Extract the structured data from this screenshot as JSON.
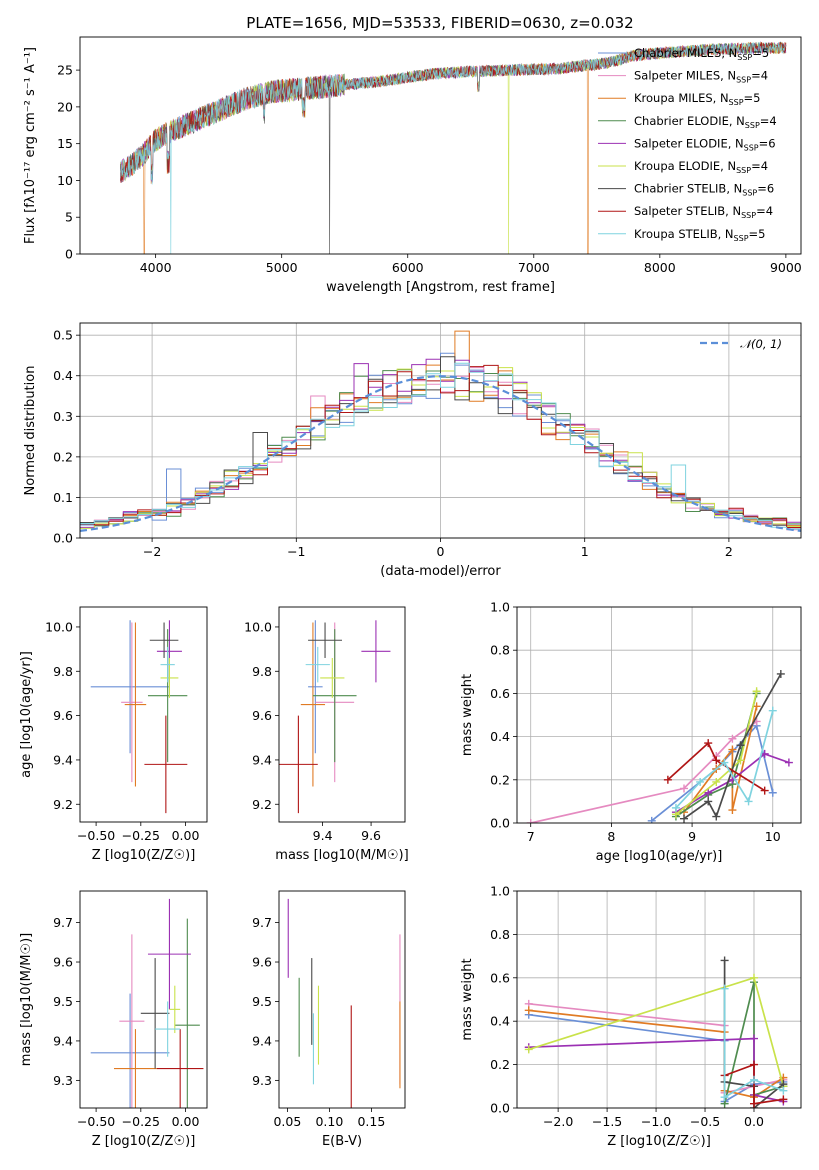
{
  "title": "PLATE=1656, MJD=53533, FIBERID=0630, z=0.032",
  "colors": {
    "Chabrier MILES": "#6a8fd6",
    "Salpeter MILES": "#e58ac0",
    "Kroupa MILES": "#e07b24",
    "Chabrier ELODIE": "#4f8c4f",
    "Salpeter ELODIE": "#9b30b3",
    "Kroupa ELODIE": "#c9e24a",
    "Chabrier STELIB": "#4a4a4a",
    "Salpeter STELIB": "#b01515",
    "Kroupa STELIB": "#7fd3df"
  },
  "chart_data": [
    {
      "type": "line",
      "name": "spectrum",
      "title": "PLATE=1656, MJD=53533, FIBERID=0630, z=0.032",
      "xlabel": "wavelength [Angstrom, rest frame]",
      "ylabel": "Flux [fλ10⁻¹⁷ erg cm⁻² s⁻¹ A⁻¹]",
      "xlim": [
        3400,
        9120
      ],
      "ylim": [
        0,
        29.5
      ],
      "xticks": [
        4000,
        5000,
        6000,
        7000,
        8000,
        9000
      ],
      "yticks": [
        0,
        5,
        10,
        15,
        20,
        25
      ],
      "legend": [
        "Chabrier MILES, N_SSP=5",
        "Salpeter MILES, N_SSP=4",
        "Kroupa MILES, N_SSP=5",
        "Chabrier ELODIE, N_SSP=4",
        "Salpeter ELODIE, N_SSP=6",
        "Kroupa ELODIE, N_SSP=4",
        "Chabrier STELIB, N_SSP=6",
        "Salpeter STELIB, N_SSP=4",
        "Kroupa STELIB, N_SSP=5"
      ],
      "legend_placement": "right",
      "continuum": [
        [
          3700,
          11
        ],
        [
          3800,
          12
        ],
        [
          3900,
          13.5
        ],
        [
          4000,
          15.5
        ],
        [
          4100,
          16.5
        ],
        [
          4300,
          18
        ],
        [
          4500,
          19.5
        ],
        [
          4700,
          21
        ],
        [
          4900,
          22
        ],
        [
          5200,
          22.5
        ],
        [
          5500,
          23
        ],
        [
          5800,
          23.5
        ],
        [
          6200,
          24.5
        ],
        [
          6500,
          24.8
        ],
        [
          6800,
          25
        ],
        [
          7200,
          25.2
        ],
        [
          7600,
          26
        ],
        [
          7800,
          27
        ],
        [
          8000,
          27.3
        ],
        [
          8400,
          27.8
        ],
        [
          8800,
          28
        ],
        [
          9000,
          28
        ]
      ],
      "dropouts": [
        {
          "x": 3910,
          "series": "Kroupa MILES"
        },
        {
          "x": 4120,
          "series": "Kroupa STELIB"
        },
        {
          "x": 5380,
          "series": "Chabrier STELIB"
        },
        {
          "x": 6800,
          "series": "Kroupa ELODIE"
        },
        {
          "x": 7430,
          "series": "Kroupa MILES"
        }
      ]
    },
    {
      "type": "histogram",
      "name": "residuals",
      "xlabel": "(data-model)/error",
      "ylabel": "Normed distribution",
      "xlim": [
        -2.5,
        2.5
      ],
      "ylim": [
        0,
        0.53
      ],
      "xticks": [
        -2,
        -1,
        0,
        1,
        2
      ],
      "yticks": [
        0.0,
        0.1,
        0.2,
        0.3,
        0.4,
        0.5
      ],
      "legend": [
        "𝒩(0, 1)"
      ],
      "legend_placement": "top-right",
      "grid": true,
      "bin_width": 0.1,
      "spikes": [
        [
          -1.8,
          0.17
        ],
        [
          -1.2,
          0.26
        ],
        [
          -0.8,
          0.35
        ],
        [
          -0.5,
          0.43
        ],
        [
          -0.2,
          0.41
        ],
        [
          0.15,
          0.51
        ],
        [
          0.5,
          0.42
        ],
        [
          1.4,
          0.21
        ],
        [
          1.7,
          0.18
        ]
      ]
    },
    {
      "type": "errorbar",
      "name": "age-vs-Z",
      "xlabel": "Z [log10(Z/Z☉)]",
      "ylabel": "age [log10(age/yr)]",
      "xlim": [
        -0.59,
        0.12
      ],
      "ylim": [
        9.12,
        10.09
      ],
      "xticks": [
        -0.5,
        -0.25,
        0.0
      ],
      "yticks": [
        9.2,
        9.4,
        9.6,
        9.8,
        10.0
      ],
      "points": [
        {
          "series": "Chabrier MILES",
          "x": -0.31,
          "xerr": 0.22,
          "y": 9.73,
          "yerr": 0.3
        },
        {
          "series": "Salpeter MILES",
          "x": -0.3,
          "xerr": 0.06,
          "y": 9.66,
          "yerr": 0.36
        },
        {
          "series": "Kroupa MILES",
          "x": -0.28,
          "xerr": 0.06,
          "y": 9.65,
          "yerr": 0.37
        },
        {
          "series": "Chabrier ELODIE",
          "x": -0.1,
          "xerr": 0.11,
          "y": 9.69,
          "yerr": 0.3
        },
        {
          "series": "Salpeter ELODIE",
          "x": -0.09,
          "xerr": 0.07,
          "y": 9.89,
          "yerr": 0.14
        },
        {
          "series": "Kroupa ELODIE",
          "x": -0.09,
          "xerr": 0.05,
          "y": 9.77,
          "yerr": 0.09
        },
        {
          "series": "Chabrier STELIB",
          "x": -0.12,
          "xerr": 0.08,
          "y": 9.94,
          "yerr": 0.08
        },
        {
          "series": "Salpeter STELIB",
          "x": -0.11,
          "xerr": 0.12,
          "y": 9.38,
          "yerr": 0.22
        },
        {
          "series": "Kroupa STELIB",
          "x": -0.1,
          "xerr": 0.04,
          "y": 9.83,
          "yerr": 0.08
        }
      ]
    },
    {
      "type": "errorbar",
      "name": "age-vs-mass",
      "xlabel": "mass [log10(M/M☉)]",
      "ylabel": "",
      "xlim": [
        9.22,
        9.74
      ],
      "ylim": [
        9.12,
        10.09
      ],
      "xticks": [
        9.4,
        9.6
      ],
      "yticks": [
        9.2,
        9.4,
        9.6,
        9.8,
        10.0
      ],
      "points": [
        {
          "series": "Chabrier MILES",
          "x": 9.37,
          "xerr": 0.03,
          "y": 9.73,
          "yerr": 0.3
        },
        {
          "series": "Salpeter MILES",
          "x": 9.45,
          "xerr": 0.08,
          "y": 9.66,
          "yerr": 0.36
        },
        {
          "series": "Kroupa MILES",
          "x": 9.36,
          "xerr": 0.05,
          "y": 9.65,
          "yerr": 0.37
        },
        {
          "series": "Chabrier ELODIE",
          "x": 9.45,
          "xerr": 0.09,
          "y": 9.69,
          "yerr": 0.3
        },
        {
          "series": "Salpeter ELODIE",
          "x": 9.62,
          "xerr": 0.06,
          "y": 9.89,
          "yerr": 0.14
        },
        {
          "series": "Kroupa ELODIE",
          "x": 9.44,
          "xerr": 0.05,
          "y": 9.77,
          "yerr": 0.09
        },
        {
          "series": "Chabrier STELIB",
          "x": 9.41,
          "xerr": 0.07,
          "y": 9.94,
          "yerr": 0.08
        },
        {
          "series": "Salpeter STELIB",
          "x": 9.3,
          "xerr": 0.08,
          "y": 9.38,
          "yerr": 0.22
        },
        {
          "series": "Kroupa STELIB",
          "x": 9.38,
          "xerr": 0.05,
          "y": 9.83,
          "yerr": 0.08
        }
      ]
    },
    {
      "type": "line",
      "name": "mass-weight-vs-age",
      "xlabel": "age [log10(age/yr)]",
      "ylabel": "mass weight",
      "xlim": [
        6.83,
        10.35
      ],
      "ylim": [
        0,
        1.0
      ],
      "xticks": [
        7,
        8,
        9,
        10
      ],
      "yticks": [
        0.0,
        0.2,
        0.4,
        0.6,
        0.8,
        1.0
      ],
      "grid": true,
      "series": [
        {
          "name": "Chabrier MILES",
          "points": [
            [
              8.5,
              0.01
            ],
            [
              9.3,
              0.25
            ],
            [
              9.5,
              0.33
            ],
            [
              9.8,
              0.45
            ],
            [
              10.0,
              0.14
            ]
          ]
        },
        {
          "name": "Salpeter MILES",
          "points": [
            [
              7.0,
              0.0
            ],
            [
              8.9,
              0.16
            ],
            [
              9.3,
              0.31
            ],
            [
              9.5,
              0.39
            ],
            [
              9.8,
              0.47
            ]
          ]
        },
        {
          "name": "Kroupa MILES",
          "points": [
            [
              8.9,
              0.05
            ],
            [
              9.3,
              0.25
            ],
            [
              9.5,
              0.34
            ],
            [
              9.5,
              0.06
            ],
            [
              9.8,
              0.54
            ]
          ]
        },
        {
          "name": "Chabrier ELODIE",
          "points": [
            [
              8.8,
              0.03
            ],
            [
              9.2,
              0.13
            ],
            [
              9.5,
              0.18
            ],
            [
              9.8,
              0.6
            ]
          ]
        },
        {
          "name": "Salpeter ELODIE",
          "points": [
            [
              8.8,
              0.05
            ],
            [
              9.2,
              0.14
            ],
            [
              9.5,
              0.2
            ],
            [
              9.9,
              0.32
            ],
            [
              10.2,
              0.28
            ]
          ]
        },
        {
          "name": "Kroupa ELODIE",
          "points": [
            [
              8.8,
              0.04
            ],
            [
              9.3,
              0.19
            ],
            [
              9.6,
              0.29
            ],
            [
              9.8,
              0.61
            ]
          ]
        },
        {
          "name": "Chabrier STELIB",
          "points": [
            [
              8.9,
              0.02
            ],
            [
              9.2,
              0.1
            ],
            [
              9.3,
              0.03
            ],
            [
              9.6,
              0.36
            ],
            [
              10.1,
              0.69
            ]
          ]
        },
        {
          "name": "Salpeter STELIB",
          "points": [
            [
              8.7,
              0.2
            ],
            [
              9.2,
              0.37
            ],
            [
              9.3,
              0.29
            ],
            [
              9.9,
              0.15
            ]
          ]
        },
        {
          "name": "Kroupa STELIB",
          "points": [
            [
              8.8,
              0.07
            ],
            [
              9.1,
              0.19
            ],
            [
              9.4,
              0.28
            ],
            [
              9.7,
              0.1
            ],
            [
              10.0,
              0.52
            ]
          ]
        }
      ]
    },
    {
      "type": "errorbar",
      "name": "mass-vs-Z",
      "xlabel": "Z [log10(Z/Z☉)]",
      "ylabel": "mass [log10(M/M☉)]",
      "xlim": [
        -0.59,
        0.12
      ],
      "ylim": [
        9.23,
        9.78
      ],
      "xticks": [
        -0.5,
        -0.25,
        0.0
      ],
      "yticks": [
        9.3,
        9.4,
        9.5,
        9.6,
        9.7
      ],
      "points": [
        {
          "series": "Chabrier MILES",
          "x": -0.31,
          "xerr": 0.22,
          "y": 9.37,
          "yerr": 0.15
        },
        {
          "series": "Salpeter MILES",
          "x": -0.3,
          "xerr": 0.07,
          "y": 9.45,
          "yerr": 0.22
        },
        {
          "series": "Kroupa MILES",
          "x": -0.28,
          "xerr": 0.12,
          "y": 9.33,
          "yerr": 0.1
        },
        {
          "series": "Chabrier ELODIE",
          "x": 0.01,
          "xerr": 0.07,
          "y": 9.44,
          "yerr": 0.27
        },
        {
          "series": "Salpeter ELODIE",
          "x": -0.09,
          "xerr": 0.12,
          "y": 9.62,
          "yerr": 0.14
        },
        {
          "series": "Kroupa ELODIE",
          "x": -0.06,
          "xerr": 0.03,
          "y": 9.48,
          "yerr": 0.06
        },
        {
          "series": "Chabrier STELIB",
          "x": -0.17,
          "xerr": 0.08,
          "y": 9.47,
          "yerr": 0.14
        },
        {
          "series": "Salpeter STELIB",
          "x": -0.03,
          "xerr": 0.13,
          "y": 9.33,
          "yerr": 0.1
        },
        {
          "series": "Kroupa STELIB",
          "x": -0.1,
          "xerr": 0.07,
          "y": 9.43,
          "yerr": 0.07
        }
      ]
    },
    {
      "type": "errorbar",
      "name": "mass-vs-EBV",
      "xlabel": "E(B-V)",
      "ylabel": "",
      "xlim": [
        0.04,
        0.19
      ],
      "ylim": [
        9.23,
        9.78
      ],
      "xticks": [
        0.05,
        0.1,
        0.15
      ],
      "yticks": [
        9.3,
        9.4,
        9.5,
        9.6,
        9.7
      ],
      "points": [
        {
          "series": "Salpeter ELODIE",
          "x": 0.051,
          "y": 9.66,
          "yerr": 0.1
        },
        {
          "series": "Chabrier ELODIE",
          "x": 0.064,
          "y": 9.46,
          "yerr": 0.1
        },
        {
          "series": "Chabrier STELIB",
          "x": 0.079,
          "y": 9.5,
          "yerr": 0.11
        },
        {
          "series": "Kroupa STELIB",
          "x": 0.081,
          "y": 9.38,
          "yerr": 0.09
        },
        {
          "series": "Kroupa ELODIE",
          "x": 0.087,
          "y": 9.44,
          "yerr": 0.1
        },
        {
          "series": "Salpeter STELIB",
          "x": 0.126,
          "y": 9.33,
          "yerr": 0.16
        },
        {
          "series": "Salpeter MILES",
          "x": 0.184,
          "y": 9.48,
          "yerr": 0.19
        },
        {
          "series": "Kroupa MILES",
          "x": 0.184,
          "y": 9.39,
          "yerr": 0.11
        }
      ]
    },
    {
      "type": "line",
      "name": "mass-weight-vs-Z",
      "xlabel": "Z [log10(Z/Z☉)]",
      "ylabel": "mass weight",
      "xlim": [
        -2.42,
        0.48
      ],
      "ylim": [
        0,
        1.0
      ],
      "xticks": [
        -2.0,
        -1.5,
        -1.0,
        -0.5,
        0.0
      ],
      "yticks": [
        0.0,
        0.2,
        0.4,
        0.6,
        0.8,
        1.0
      ],
      "grid": true,
      "series": [
        {
          "name": "Chabrier MILES",
          "points": [
            [
              -2.3,
              0.43
            ],
            [
              -0.3,
              0.31
            ],
            [
              -0.3,
              0.03
            ],
            [
              0.0,
              0.11
            ],
            [
              0.3,
              0.12
            ]
          ]
        },
        {
          "name": "Salpeter MILES",
          "points": [
            [
              -2.3,
              0.48
            ],
            [
              -0.3,
              0.38
            ],
            [
              -0.3,
              0.07
            ],
            [
              0.0,
              0.1
            ],
            [
              0.3,
              0.13
            ]
          ]
        },
        {
          "name": "Kroupa MILES",
          "points": [
            [
              -2.3,
              0.45
            ],
            [
              -0.3,
              0.35
            ],
            [
              -0.3,
              0.08
            ],
            [
              0.0,
              0.05
            ],
            [
              0.3,
              0.14
            ]
          ]
        },
        {
          "name": "Chabrier ELODIE",
          "points": [
            [
              -0.3,
              0.02
            ],
            [
              0.0,
              0.58
            ],
            [
              0.0,
              0.06
            ],
            [
              0.3,
              0.1
            ]
          ]
        },
        {
          "name": "Salpeter ELODIE",
          "points": [
            [
              -2.3,
              0.28
            ],
            [
              0.0,
              0.32
            ],
            [
              0.0,
              0.06
            ],
            [
              0.3,
              0.03
            ]
          ]
        },
        {
          "name": "Kroupa ELODIE",
          "points": [
            [
              -2.3,
              0.27
            ],
            [
              0.0,
              0.6
            ],
            [
              0.3,
              0.1
            ]
          ]
        },
        {
          "name": "Chabrier STELIB",
          "points": [
            [
              -0.3,
              0.68
            ],
            [
              -0.3,
              0.12
            ],
            [
              0.0,
              0.1
            ],
            [
              0.0,
              0.0
            ],
            [
              0.3,
              0.11
            ]
          ]
        },
        {
          "name": "Salpeter STELIB",
          "points": [
            [
              -0.3,
              0.15
            ],
            [
              0.0,
              0.2
            ],
            [
              0.0,
              0.02
            ],
            [
              0.3,
              0.04
            ]
          ]
        },
        {
          "name": "Kroupa STELIB",
          "points": [
            [
              -0.3,
              0.55
            ],
            [
              -0.3,
              0.05
            ],
            [
              0.0,
              0.13
            ],
            [
              0.3,
              0.08
            ]
          ]
        }
      ]
    }
  ]
}
